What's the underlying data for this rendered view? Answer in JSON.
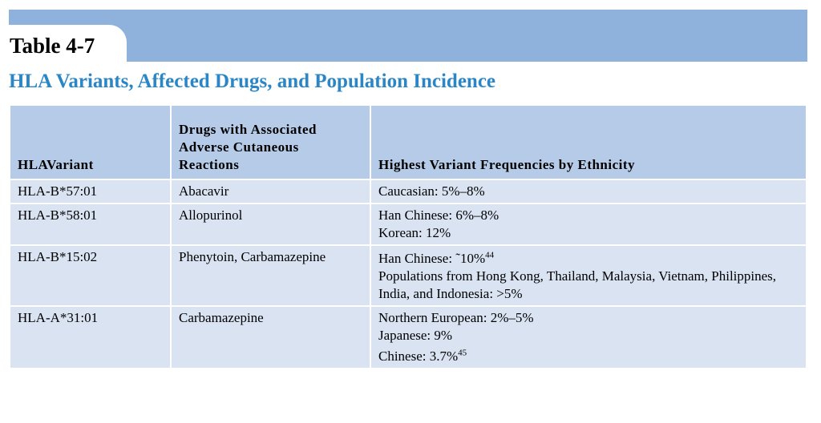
{
  "table_number": "Table 4-7",
  "title": "HLA Variants, Affected Drugs, and Population Incidence",
  "headers": [
    "HLAVariant",
    "Drugs with Associated Adverse Cutaneous Reactions",
    "Highest Variant Frequencies by Ethnicity"
  ],
  "rows": [
    {
      "variant": "HLA-B*57:01",
      "drugs": "Abacavir",
      "freq": [
        {
          "text": "Caucasian: 5%–8%",
          "sup": ""
        }
      ]
    },
    {
      "variant": "HLA-B*58:01",
      "drugs": "Allopurinol",
      "freq": [
        {
          "text": "Han Chinese: 6%–8%",
          "sup": ""
        },
        {
          "text": "Korean: 12%",
          "sup": ""
        }
      ]
    },
    {
      "variant": "HLA-B*15:02",
      "drugs": "Phenytoin, Carbamazepine",
      "freq": [
        {
          "text": "Han Chinese: ˜10%",
          "sup": "44"
        },
        {
          "text": "Populations from Hong Kong, Thailand, Malaysia, Vietnam, Philippines, India, and Indonesia: >5%",
          "sup": ""
        }
      ]
    },
    {
      "variant": "HLA-A*31:01",
      "drugs": "Carbamazepine",
      "freq": [
        {
          "text": "Northern European: 2%–5%",
          "sup": ""
        },
        {
          "text": "Japanese: 9%",
          "sup": ""
        },
        {
          "text": "Chinese: 3.7%",
          "sup": "45"
        }
      ]
    }
  ]
}
